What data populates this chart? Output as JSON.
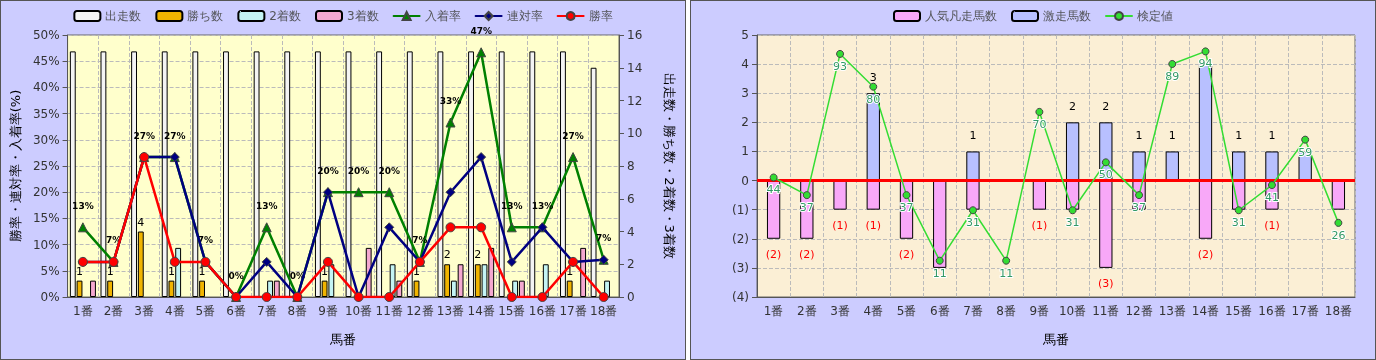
{
  "chart_data": [
    {
      "type": "bar",
      "xlabel": "馬番",
      "ylabel": "勝率・連対率・入着率(%)",
      "y2label": "出走数・勝ち数・2着数・3着数",
      "categories": [
        "1番",
        "2番",
        "3番",
        "4番",
        "5番",
        "6番",
        "7番",
        "8番",
        "9番",
        "10番",
        "11番",
        "12番",
        "13番",
        "14番",
        "15番",
        "16番",
        "17番",
        "18番"
      ],
      "series": [
        {
          "name": "出走数",
          "color": "#f4f4f4",
          "axis": "y2",
          "values": [
            15,
            15,
            15,
            15,
            15,
            15,
            15,
            15,
            15,
            15,
            15,
            15,
            15,
            15,
            15,
            15,
            15,
            14
          ]
        },
        {
          "name": "勝ち数",
          "color": "#f0b400",
          "axis": "y2",
          "values": [
            1,
            1,
            4,
            1,
            1,
            0,
            0,
            0,
            1,
            0,
            0,
            1,
            2,
            2,
            0,
            0,
            1,
            0
          ],
          "value_labels": [
            "1",
            "1",
            "4",
            "1",
            "1",
            null,
            null,
            null,
            "1",
            null,
            null,
            "1",
            "2",
            "2",
            null,
            null,
            "1",
            null
          ]
        },
        {
          "name": "2着数",
          "color": "#c4f4f4",
          "axis": "y2",
          "values": [
            0,
            0,
            0,
            3,
            0,
            0,
            1,
            0,
            2,
            0,
            2,
            0,
            1,
            2,
            1,
            2,
            0,
            1
          ]
        },
        {
          "name": "3着数",
          "color": "#f4a8d0",
          "axis": "y2",
          "values": [
            1,
            0,
            0,
            0,
            0,
            0,
            1,
            0,
            0,
            3,
            1,
            0,
            2,
            3,
            1,
            0,
            3,
            0
          ]
        },
        {
          "name": "入着率",
          "type": "line",
          "color": "#008000",
          "marker": "triangle",
          "values": [
            13.3,
            6.7,
            26.7,
            26.7,
            6.7,
            0,
            13.3,
            0,
            20,
            20,
            20,
            6.7,
            33.3,
            46.7,
            13.3,
            13.3,
            26.7,
            7.1
          ],
          "value_labels": [
            "13%",
            "7%",
            "27%",
            "27%",
            "7%",
            "0%",
            "13%",
            "0%",
            "20%",
            "20%",
            "20%",
            "7%",
            "33%",
            "47%",
            "13%",
            "13%",
            "27%",
            "7%"
          ]
        },
        {
          "name": "連対率",
          "type": "line",
          "color": "#000080",
          "marker": "diamond",
          "values": [
            6.7,
            6.7,
            26.7,
            26.7,
            6.7,
            0,
            6.7,
            0,
            20,
            0,
            13.3,
            6.7,
            20,
            26.7,
            6.7,
            13.3,
            6.7,
            7.1
          ]
        },
        {
          "name": "勝率",
          "type": "line",
          "color": "#ff0000",
          "marker": "circle",
          "values": [
            6.7,
            6.7,
            26.7,
            6.7,
            6.7,
            0,
            0,
            0,
            6.7,
            0,
            0,
            6.7,
            13.3,
            13.3,
            0,
            0,
            6.7,
            0
          ]
        }
      ],
      "ylim": [
        0,
        50
      ],
      "yticks": [
        {
          "value": 0,
          "label": "0%"
        },
        {
          "value": 5,
          "label": "5%"
        },
        {
          "value": 10,
          "label": "10%"
        },
        {
          "value": 15,
          "label": "15%"
        },
        {
          "value": 20,
          "label": "20%"
        },
        {
          "value": 25,
          "label": "25%"
        },
        {
          "value": 30,
          "label": "30%"
        },
        {
          "value": 35,
          "label": "35%"
        },
        {
          "value": 40,
          "label": "40%"
        },
        {
          "value": 45,
          "label": "45%"
        },
        {
          "value": 50,
          "label": "50%"
        }
      ],
      "y2lim": [
        0,
        16
      ],
      "y2ticks": [
        0,
        2,
        4,
        6,
        8,
        10,
        12,
        14,
        16
      ],
      "grid": true,
      "legend": "top"
    },
    {
      "type": "bar",
      "xlabel": "馬番",
      "stacked": true,
      "categories": [
        "1番",
        "2番",
        "3番",
        "4番",
        "5番",
        "6番",
        "7番",
        "8番",
        "9番",
        "10番",
        "11番",
        "12番",
        "13番",
        "14番",
        "15番",
        "16番",
        "17番",
        "18番"
      ],
      "series": [
        {
          "name": "人気凡走馬数",
          "color": "#f8a8f8",
          "values": [
            -2,
            -2,
            -1,
            -1,
            -2,
            -3,
            -1,
            0,
            -1,
            -1,
            -3,
            -1,
            0,
            -2,
            -1,
            -1,
            0,
            -1
          ],
          "value_labels": [
            "(2)",
            "(2)",
            "(1)",
            "(1)",
            "(2)",
            null,
            null,
            null,
            "(1)",
            null,
            "(3)",
            null,
            null,
            "(2)",
            null,
            "(1)",
            null,
            null
          ]
        },
        {
          "name": "激走馬数",
          "color": "#b8c0ff",
          "values": [
            0,
            0,
            0,
            3,
            0,
            0,
            1,
            0,
            0,
            2,
            2,
            1,
            1,
            4,
            1,
            1,
            1,
            0
          ],
          "value_labels": [
            null,
            null,
            null,
            "3",
            null,
            null,
            "1",
            null,
            null,
            "2",
            "2",
            "1",
            "1",
            null,
            "1",
            "1",
            null,
            null
          ]
        },
        {
          "name": "検定値",
          "type": "line",
          "color": "#33dd33",
          "marker": "circle",
          "axis": "y2",
          "values": [
            44,
            37,
            93,
            80,
            37,
            11,
            31,
            11,
            70,
            31,
            50,
            37,
            89,
            94,
            31,
            41,
            59,
            26
          ],
          "value_labels": [
            "44",
            "37",
            "93",
            "80",
            "37",
            "11",
            "31",
            "11",
            "70",
            "31",
            "50",
            "37",
            "89",
            "94",
            "31",
            "41",
            "59",
            "26"
          ]
        }
      ],
      "ylim": [
        -4,
        5
      ],
      "yticks": [
        {
          "value": -4,
          "label": "(4)"
        },
        {
          "value": -3,
          "label": "(3)"
        },
        {
          "value": -2,
          "label": "(2)"
        },
        {
          "value": -1,
          "label": "(1)"
        },
        0,
        1,
        2,
        3,
        4,
        5
      ],
      "y2lim": [
        -3.4,
        100.5
      ],
      "ref_lines": [
        {
          "axis": "y",
          "value": 0,
          "color": "#ff0000"
        }
      ],
      "grid": true,
      "legend": "top"
    }
  ]
}
